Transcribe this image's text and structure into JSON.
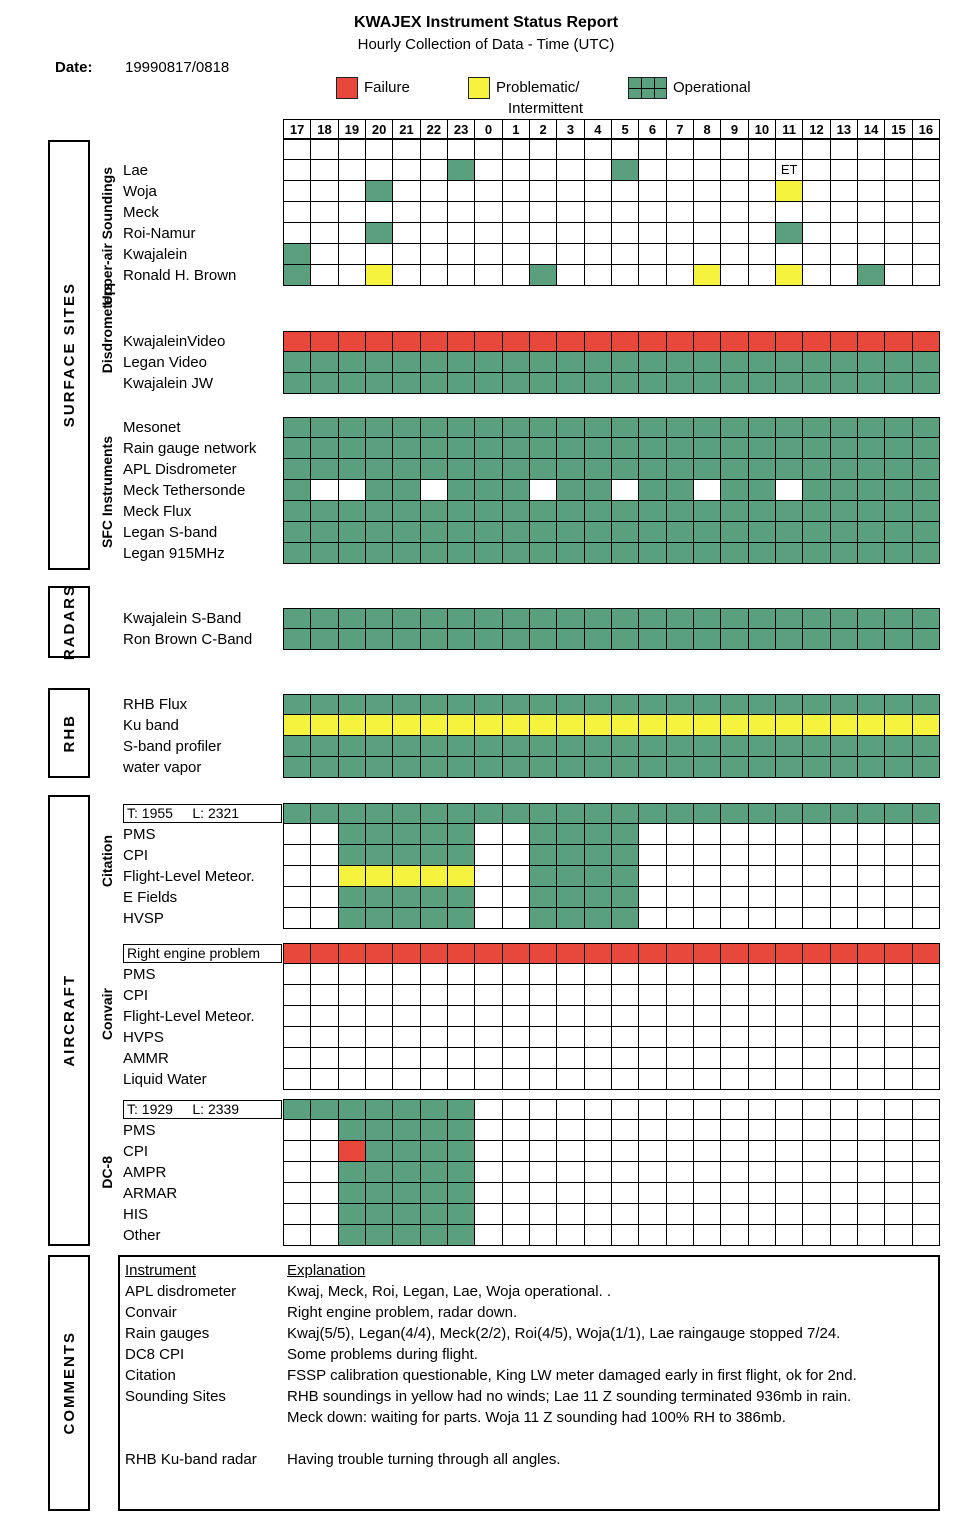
{
  "header": {
    "title": "KWAJEX Instrument Status Report",
    "subtitle": "Hourly Collection of Data - Time (UTC)",
    "date_label": "Date:",
    "date_value": "19990817/0818"
  },
  "legend": {
    "items": [
      {
        "key": "R",
        "label": "Failure"
      },
      {
        "key": "Y",
        "label": "Problematic/",
        "label2": "Intermittent"
      },
      {
        "key": "G",
        "label": "Operational"
      }
    ]
  },
  "side_labels": {
    "surface_sites": "SURFACE SITES",
    "radars": "RADARS",
    "rhb": "RHB",
    "aircraft": "AIRCRAFT",
    "comments": "COMMENTS"
  },
  "group_labels": {
    "upper_air": "Upper-air Soundings",
    "disdrometers": "Disdrometers",
    "sfc": "SFC Instruments",
    "citation": "Citation",
    "convair": "Convair",
    "dc8": "DC-8"
  },
  "chart_data": {
    "type": "heatmap",
    "title": "KWAJEX Instrument Status Report",
    "x_axis": "Time (UTC)",
    "hours": [
      "17",
      "18",
      "19",
      "20",
      "21",
      "22",
      "23",
      "0",
      "1",
      "2",
      "3",
      "4",
      "5",
      "6",
      "7",
      "8",
      "9",
      "10",
      "11",
      "12",
      "13",
      "14",
      "15",
      "16"
    ],
    "colors": {
      "R": "#e8473c",
      "Y": "#f6f33e",
      "G": "#5a9f7e"
    },
    "cell_codes": {
      "G": "Operational",
      "Y": "Problematic/Intermittent",
      "R": "Failure",
      ".": "no data",
      "E": "text cell (early termination)"
    },
    "cell_text": {
      "E": "ET"
    },
    "blocks": {
      "soundings": {
        "section": "SURFACE SITES",
        "group": "Upper-air Soundings",
        "rows": [
          {
            "label": "",
            "cells": "........................"
          },
          {
            "label": "Lae",
            "cells": "......G.....G.....E....."
          },
          {
            "label": "Woja",
            "cells": "...G..............Y....."
          },
          {
            "label": "Meck",
            "cells": "........................"
          },
          {
            "label": "Roi-Namur",
            "cells": "...G..............G....."
          },
          {
            "label": "Kwajalein",
            "cells": "G......................."
          },
          {
            "label": "Ronald H. Brown",
            "cells": "G..Y.....G.....Y..Y..G.."
          }
        ]
      },
      "disdrometers": {
        "section": "SURFACE SITES",
        "group": "Disdrometers",
        "rows": [
          {
            "label": "KwajaleinVideo",
            "cells": "RRRRRRRRRRRRRRRRRRRRRRRR"
          },
          {
            "label": "Legan Video",
            "cells": "GGGGGGGGGGGGGGGGGGGGGGGG"
          },
          {
            "label": "Kwajalein JW",
            "cells": "GGGGGGGGGGGGGGGGGGGGGGGG"
          }
        ]
      },
      "sfc": {
        "section": "SURFACE SITES",
        "group": "SFC Instruments",
        "rows": [
          {
            "label": "Mesonet",
            "cells": "GGGGGGGGGGGGGGGGGGGGGGGG"
          },
          {
            "label": "Rain gauge network",
            "cells": "GGGGGGGGGGGGGGGGGGGGGGGG"
          },
          {
            "label": "APL Disdrometer",
            "cells": "GGGGGGGGGGGGGGGGGGGGGGGG"
          },
          {
            "label": "Meck Tethersonde",
            "cells": "G..GG.GGG.GG.GG.GG.GGGGG"
          },
          {
            "label": "Meck Flux",
            "cells": "GGGGGGGGGGGGGGGGGGGGGGGG"
          },
          {
            "label": "Legan S-band",
            "cells": "GGGGGGGGGGGGGGGGGGGGGGGG"
          },
          {
            "label": "Legan 915MHz",
            "cells": "GGGGGGGGGGGGGGGGGGGGGGGG"
          }
        ]
      },
      "radars": {
        "section": "RADARS",
        "group": "",
        "rows": [
          {
            "label": "Kwajalein S-Band",
            "cells": "GGGGGGGGGGGGGGGGGGGGGGGG"
          },
          {
            "label": "Ron Brown C-Band",
            "cells": "GGGGGGGGGGGGGGGGGGGGGGGG"
          }
        ]
      },
      "rhb": {
        "section": "RHB",
        "group": "",
        "rows": [
          {
            "label": "RHB Flux",
            "cells": "GGGGGGGGGGGGGGGGGGGGGGGG"
          },
          {
            "label": "Ku band",
            "cells": "YYYYYYYYYYYYYYYYYYYYYYYY"
          },
          {
            "label": "S-band profiler",
            "cells": "GGGGGGGGGGGGGGGGGGGGGGGG"
          },
          {
            "label": "water vapor",
            "cells": "GGGGGGGGGGGGGGGGGGGGGGGG"
          }
        ]
      },
      "citation": {
        "section": "AIRCRAFT",
        "group": "Citation",
        "rows": [
          {
            "label": "T: 1955     L: 2321",
            "boxed": true,
            "cells": "GGGGGGGGGGGGGGGGGGGGGGGG"
          },
          {
            "label": "PMS",
            "cells": "..GGGGG..GGGG..........."
          },
          {
            "label": "CPI",
            "cells": "..GGGGG..GGGG..........."
          },
          {
            "label": "Flight-Level Meteor.",
            "cells": "..YYYYY..GGGG..........."
          },
          {
            "label": "E Fields",
            "cells": "..GGGGG..GGGG..........."
          },
          {
            "label": "HVSP",
            "cells": "..GGGGG..GGGG..........."
          }
        ]
      },
      "convair": {
        "section": "AIRCRAFT",
        "group": "Convair",
        "rows": [
          {
            "label": "Right engine problem",
            "boxed": true,
            "cells": "RRRRRRRRRRRRRRRRRRRRRRRR"
          },
          {
            "label": "PMS",
            "cells": "........................"
          },
          {
            "label": "CPI",
            "cells": "........................"
          },
          {
            "label": "Flight-Level Meteor.",
            "cells": "........................"
          },
          {
            "label": "HVPS",
            "cells": "........................"
          },
          {
            "label": "AMMR",
            "cells": "........................"
          },
          {
            "label": "Liquid Water",
            "cells": "........................"
          }
        ]
      },
      "dc8": {
        "section": "AIRCRAFT",
        "group": "DC-8",
        "rows": [
          {
            "label": "T: 1929     L: 2339",
            "boxed": true,
            "cells": "GGGGGGG................."
          },
          {
            "label": "PMS",
            "cells": "..GGGGG................."
          },
          {
            "label": "CPI",
            "cells": "..RGGGG................."
          },
          {
            "label": "AMPR",
            "cells": "..GGGGG................."
          },
          {
            "label": "ARMAR",
            "cells": "..GGGGG................."
          },
          {
            "label": "HIS",
            "cells": "..GGGGG................."
          },
          {
            "label": "Other",
            "cells": "..GGGGG................."
          }
        ]
      }
    }
  },
  "comments": {
    "col1_header": "Instrument",
    "col2_header": "Explanation",
    "rows": [
      {
        "instrument": "APL disdrometer",
        "explanation": "Kwaj, Meck, Roi, Legan, Lae, Woja operational. ."
      },
      {
        "instrument": "Convair",
        "explanation": "Right engine problem, radar down."
      },
      {
        "instrument": "Rain gauges",
        "explanation": "Kwaj(5/5), Legan(4/4), Meck(2/2), Roi(4/5), Woja(1/1), Lae raingauge stopped 7/24."
      },
      {
        "instrument": "DC8 CPI",
        "explanation": "Some problems during flight."
      },
      {
        "instrument": "Citation",
        "explanation": "FSSP calibration questionable, King LW meter damaged early in first flight, ok for 2nd."
      },
      {
        "instrument": "Sounding Sites",
        "explanation": "RHB soundings in yellow had no winds; Lae 11 Z sounding terminated 936mb in rain."
      },
      {
        "instrument": "",
        "explanation": "Meck down: waiting for parts. Woja 11 Z sounding had 100% RH to 386mb."
      },
      {
        "instrument": "",
        "explanation": ""
      },
      {
        "instrument": "RHB Ku-band radar",
        "explanation": "Having trouble turning through all angles."
      }
    ]
  }
}
